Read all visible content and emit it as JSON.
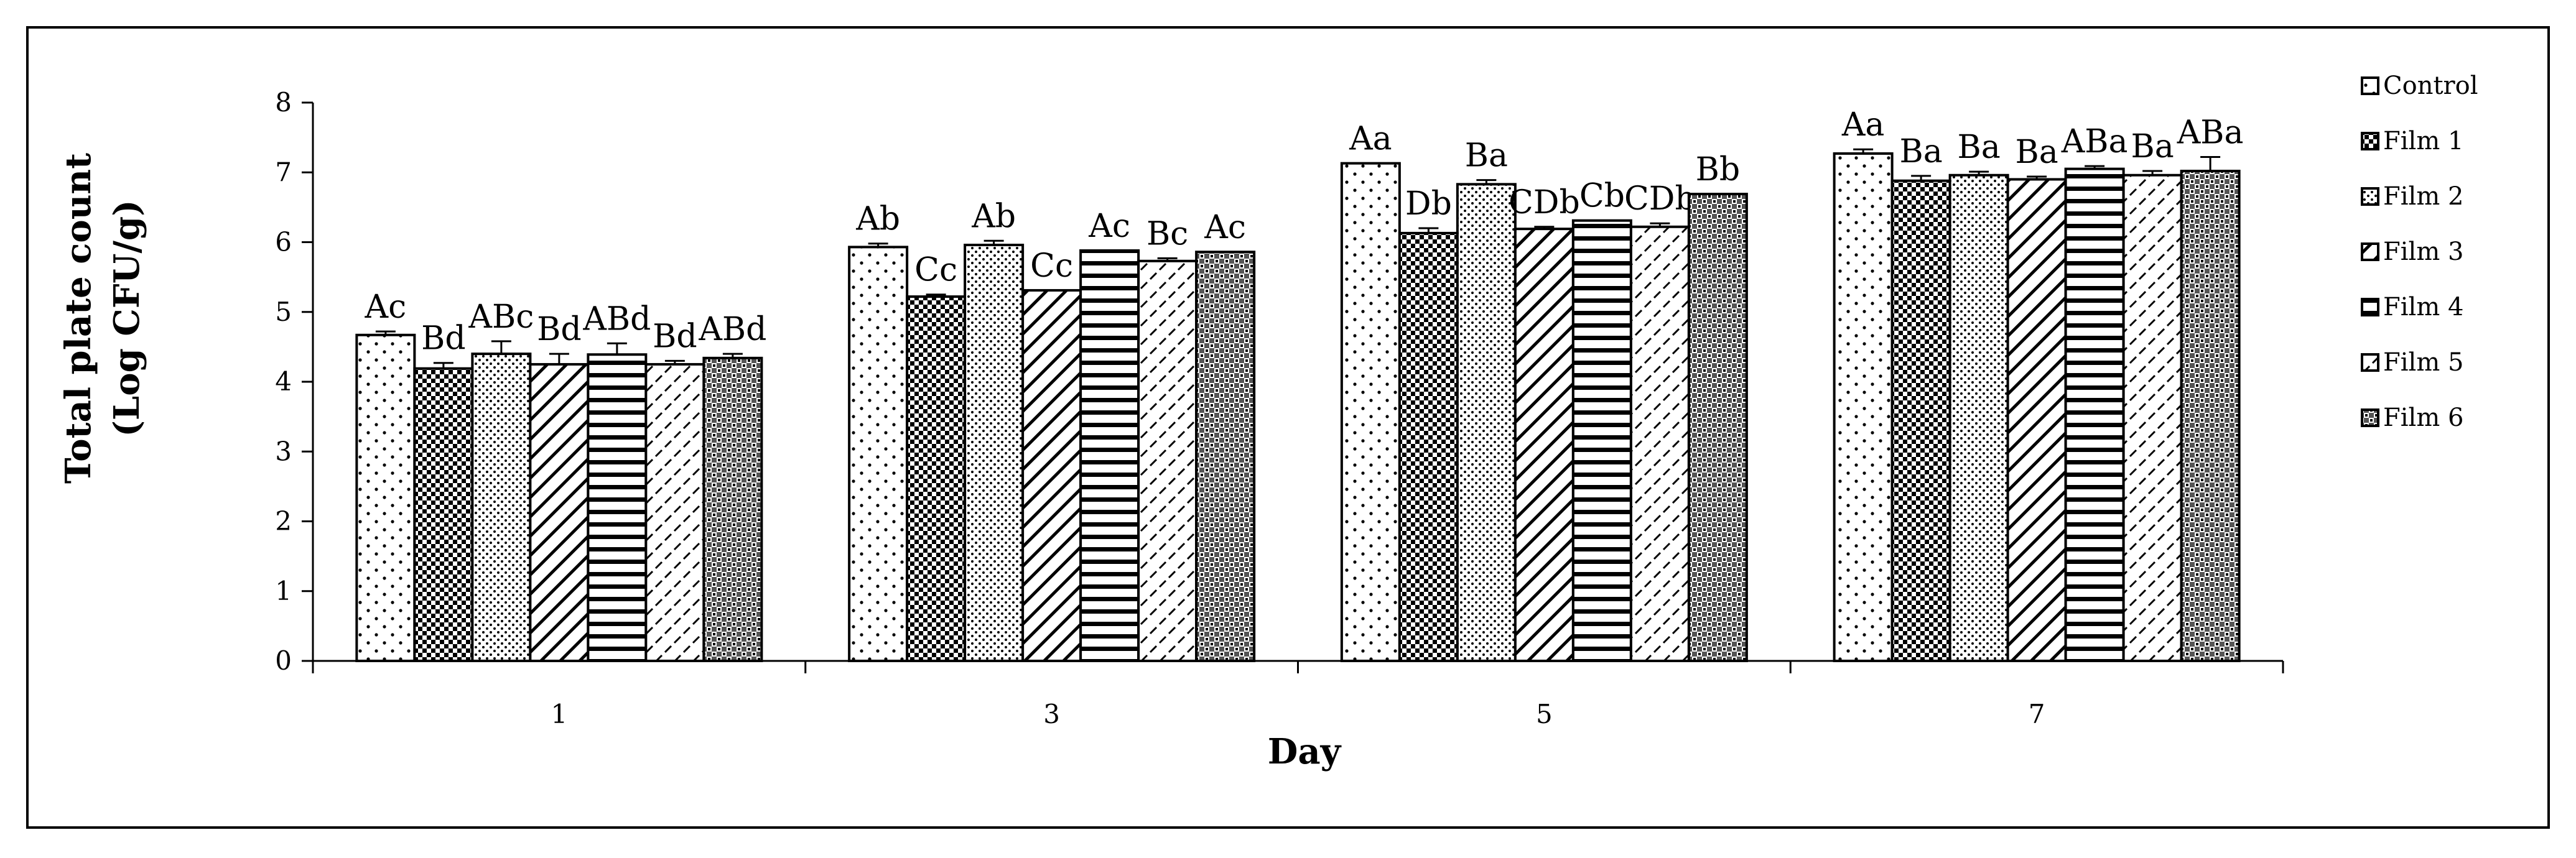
{
  "chart_data": {
    "type": "bar",
    "xlabel": "Day",
    "ylabel_lines": [
      "Total plate count",
      "(Log CFU/g)"
    ],
    "ylim": [
      0,
      8
    ],
    "yticks": [
      0,
      1,
      2,
      3,
      4,
      5,
      6,
      7,
      8
    ],
    "grid": false,
    "legend_position": "right",
    "categories": [
      "1",
      "3",
      "5",
      "7"
    ],
    "series": [
      {
        "name": "Control",
        "pattern": "dots",
        "values": [
          4.67,
          5.93,
          7.13,
          7.27
        ],
        "errors": [
          0.05,
          0.05,
          0.0,
          0.06
        ],
        "labels": [
          "Ac",
          "Ab",
          "Aa",
          "Aa"
        ]
      },
      {
        "name": "Film 1",
        "pattern": "checker",
        "values": [
          4.19,
          5.22,
          6.13,
          6.88
        ],
        "errors": [
          0.08,
          0.03,
          0.07,
          0.07
        ],
        "labels": [
          "Bd",
          "Cc",
          "Db",
          "Ba"
        ]
      },
      {
        "name": "Film 2",
        "pattern": "dense-dots",
        "values": [
          4.4,
          5.96,
          6.83,
          6.96
        ],
        "errors": [
          0.18,
          0.06,
          0.06,
          0.05
        ],
        "labels": [
          "ABc",
          "Ab",
          "Ba",
          "Ba"
        ]
      },
      {
        "name": "Film 3",
        "pattern": "diagonal",
        "values": [
          4.25,
          5.31,
          6.19,
          6.9
        ],
        "errors": [
          0.15,
          0.0,
          0.03,
          0.04
        ],
        "labels": [
          "Bd",
          "Cc",
          "CDb",
          "Ba"
        ]
      },
      {
        "name": "Film 4",
        "pattern": "horizontal",
        "values": [
          4.39,
          5.88,
          6.31,
          7.05
        ],
        "errors": [
          0.16,
          0.0,
          0.0,
          0.04
        ],
        "labels": [
          "ABd",
          "Ac",
          "Cb",
          "ABa"
        ]
      },
      {
        "name": "Film 5",
        "pattern": "dashes",
        "values": [
          4.25,
          5.73,
          6.22,
          6.96
        ],
        "errors": [
          0.05,
          0.04,
          0.05,
          0.06
        ],
        "labels": [
          "Bd",
          "Bc",
          "CDb",
          "Ba"
        ]
      },
      {
        "name": "Film 6",
        "pattern": "crosshatch",
        "values": [
          4.34,
          5.86,
          6.69,
          7.02
        ],
        "errors": [
          0.06,
          0.0,
          0.0,
          0.2
        ],
        "labels": [
          "ABd",
          "Ac",
          "Bb",
          "ABa"
        ]
      }
    ]
  }
}
